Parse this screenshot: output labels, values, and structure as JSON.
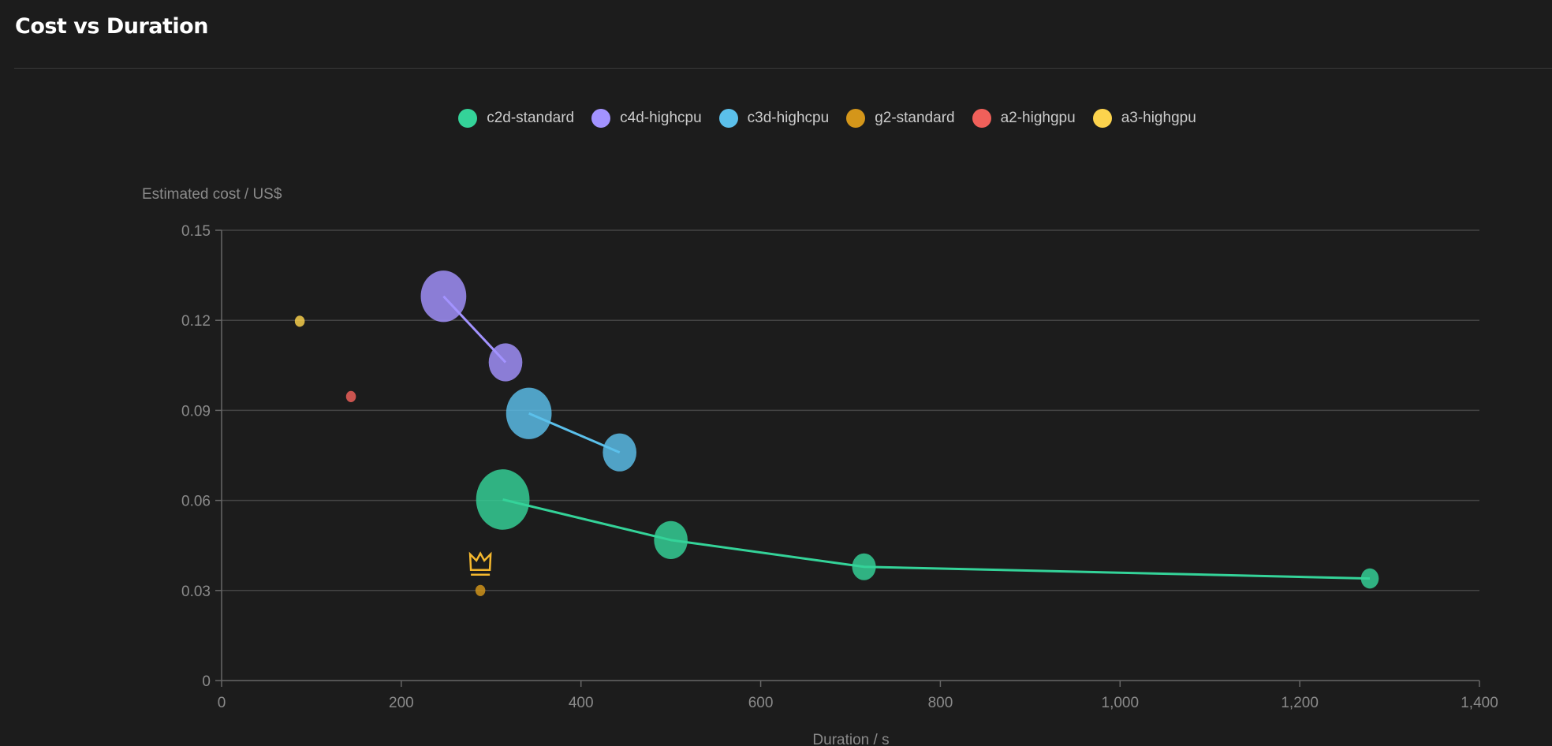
{
  "header": {
    "title": "Cost vs Duration"
  },
  "chart_data": {
    "type": "scatter",
    "title": "Cost vs Duration",
    "xlabel": "Duration / s",
    "ylabel": "Estimated cost / US$",
    "xlim": [
      0,
      1400
    ],
    "ylim": [
      0,
      0.15
    ],
    "xticks": [
      0,
      200,
      400,
      600,
      800,
      1000,
      1200,
      1400
    ],
    "xtick_labels": [
      "0",
      "200",
      "400",
      "600",
      "800",
      "1,000",
      "1,200",
      "1,400"
    ],
    "yticks": [
      0,
      0.03,
      0.06,
      0.09,
      0.12,
      0.15
    ],
    "ytick_labels": [
      "0",
      "0.03",
      "0.06",
      "0.09",
      "0.12",
      "0.15"
    ],
    "grid": true,
    "legend_position": "top-center",
    "series": [
      {
        "name": "c2d-standard",
        "color": "#34d399",
        "line": true,
        "points": [
          {
            "x": 313,
            "y": 0.0603,
            "size": 27
          },
          {
            "x": 500,
            "y": 0.0468,
            "size": 17
          },
          {
            "x": 715,
            "y": 0.0379,
            "size": 12
          },
          {
            "x": 1278,
            "y": 0.034,
            "size": 9
          }
        ]
      },
      {
        "name": "c4d-highcpu",
        "color": "#a393ff",
        "line": true,
        "points": [
          {
            "x": 247,
            "y": 0.128,
            "size": 23
          },
          {
            "x": 316,
            "y": 0.106,
            "size": 17
          }
        ]
      },
      {
        "name": "c3d-highcpu",
        "color": "#5bc0eb",
        "line": true,
        "points": [
          {
            "x": 342,
            "y": 0.089,
            "size": 23
          },
          {
            "x": 443,
            "y": 0.076,
            "size": 17
          }
        ]
      },
      {
        "name": "g2-standard",
        "color": "#d4961a",
        "line": false,
        "points": [
          {
            "x": 288,
            "y": 0.03,
            "size": 5
          }
        ]
      },
      {
        "name": "a2-highgpu",
        "color": "#f0605a",
        "line": false,
        "points": [
          {
            "x": 144,
            "y": 0.0946,
            "size": 5
          }
        ]
      },
      {
        "name": "a3-highgpu",
        "color": "#fcd34d",
        "line": false,
        "points": [
          {
            "x": 87,
            "y": 0.1197,
            "size": 5
          }
        ]
      }
    ],
    "annotations": [
      {
        "icon": "crown-icon",
        "series": "g2-standard",
        "x": 288,
        "y": 0.03,
        "color": "#f5b82e"
      }
    ]
  }
}
